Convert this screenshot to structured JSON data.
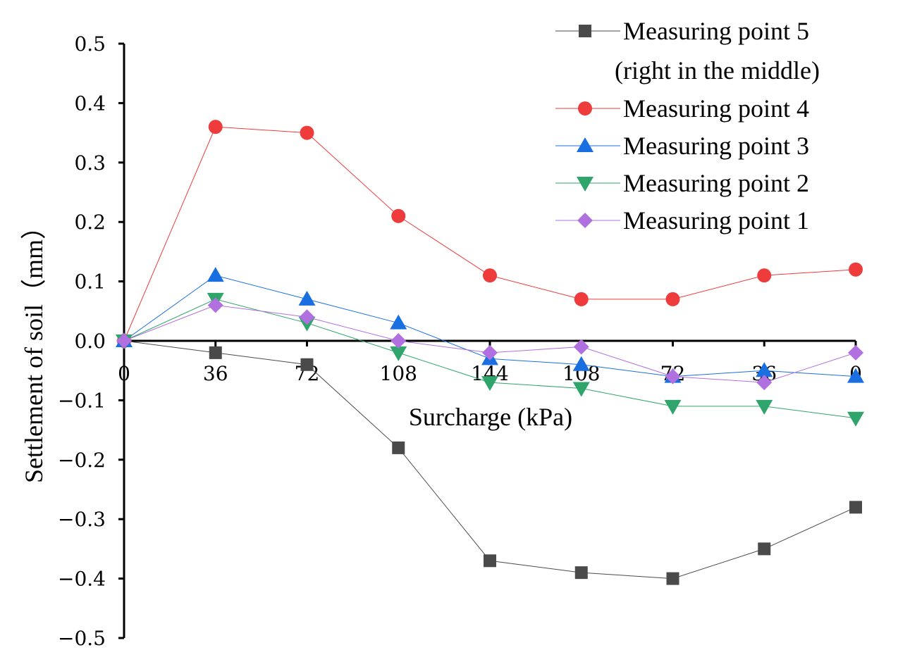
{
  "chart_data": {
    "type": "line",
    "xlabel": "Surcharge (kPa)",
    "ylabel": "Settlement of soil（mm）",
    "ylim": [
      -0.5,
      0.5
    ],
    "yticks": [
      "0.5",
      "0.4",
      "0.3",
      "0.2",
      "0.1",
      "0.0",
      "−0.1",
      "−0.2",
      "−0.3",
      "−0.4",
      "−0.5"
    ],
    "categories": [
      "0",
      "36",
      "72",
      "108",
      "144",
      "108",
      "72",
      "36",
      "0"
    ],
    "grid": false,
    "legend_position": "top-right",
    "series": [
      {
        "name": "Measuring point 5",
        "name_line2": "(right in the middle)",
        "color": "#4a4a4a",
        "marker": "square",
        "values": [
          0.0,
          -0.02,
          -0.04,
          -0.18,
          -0.37,
          -0.39,
          -0.4,
          -0.35,
          -0.28
        ]
      },
      {
        "name": "Measuring point 4",
        "color": "#ee3b3b",
        "marker": "circle",
        "values": [
          0.0,
          0.36,
          0.35,
          0.21,
          0.11,
          0.07,
          0.07,
          0.11,
          0.12
        ]
      },
      {
        "name": "Measuring point 3",
        "color": "#1a6fe0",
        "marker": "triangle-up",
        "values": [
          0.0,
          0.11,
          0.07,
          0.03,
          -0.03,
          -0.04,
          -0.06,
          -0.05,
          -0.06
        ]
      },
      {
        "name": "Measuring point 2",
        "color": "#2fa56b",
        "marker": "triangle-down",
        "values": [
          0.0,
          0.07,
          0.03,
          -0.02,
          -0.07,
          -0.08,
          -0.11,
          -0.11,
          -0.13
        ]
      },
      {
        "name": "Measuring point 1",
        "color": "#b070e0",
        "marker": "diamond",
        "values": [
          0.0,
          0.06,
          0.04,
          0.0,
          -0.02,
          -0.01,
          -0.06,
          -0.07,
          -0.02
        ]
      }
    ]
  }
}
